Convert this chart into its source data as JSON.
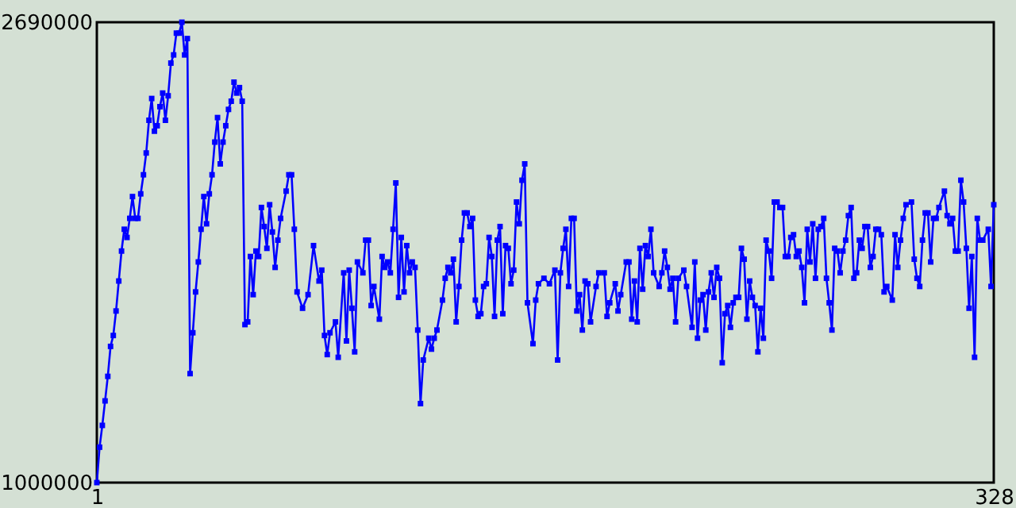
{
  "chart_data": {
    "type": "line",
    "marker": "square",
    "line_style": "solid",
    "xlim": [
      1,
      328
    ],
    "xticks": [
      1,
      328
    ],
    "ylim": [
      1000000,
      2690000
    ],
    "yticks": [
      1000000,
      2690000
    ],
    "series": [
      {
        "color": "#0000ff",
        "x": [
          1,
          2,
          3,
          4,
          5,
          6,
          7,
          8,
          9,
          10,
          11,
          12,
          13,
          14,
          15,
          16,
          17,
          18,
          19,
          20,
          21,
          22,
          23,
          24,
          25,
          26,
          27,
          28,
          29,
          30,
          31,
          32,
          33,
          34,
          35,
          36,
          37,
          38,
          39,
          40,
          41,
          42,
          43,
          44,
          45,
          46,
          47,
          48,
          49,
          50,
          51,
          52,
          53,
          54,
          55,
          56,
          57,
          58,
          59,
          60,
          61,
          62,
          63,
          64,
          65,
          66,
          67,
          68,
          70,
          71,
          72,
          73,
          74,
          76,
          78,
          80,
          82,
          83,
          84,
          85,
          86,
          88,
          89,
          91,
          92,
          93,
          94,
          95,
          96,
          98,
          99,
          100,
          101,
          102,
          104,
          105,
          106,
          107,
          108,
          109,
          110,
          111,
          112,
          113,
          114,
          115,
          116,
          117,
          118,
          119,
          120,
          122,
          123,
          124,
          125,
          127,
          128,
          129,
          130,
          131,
          132,
          133,
          134,
          135,
          136,
          137,
          138,
          139,
          140,
          141,
          142,
          143,
          144,
          145,
          146,
          147,
          148,
          149,
          150,
          151,
          152,
          153,
          154,
          155,
          156,
          157,
          158,
          160,
          161,
          162,
          164,
          166,
          168,
          169,
          170,
          171,
          172,
          173,
          174,
          175,
          176,
          177,
          178,
          179,
          180,
          181,
          183,
          184,
          186,
          187,
          188,
          190,
          191,
          192,
          194,
          195,
          196,
          197,
          198,
          199,
          200,
          201,
          202,
          203,
          204,
          206,
          207,
          208,
          209,
          210,
          211,
          212,
          213,
          215,
          216,
          218,
          219,
          220,
          221,
          222,
          223,
          224,
          225,
          226,
          227,
          228,
          229,
          230,
          231,
          232,
          233,
          234,
          235,
          236,
          237,
          238,
          239,
          240,
          241,
          242,
          243,
          244,
          245,
          246,
          247,
          248,
          249,
          250,
          251,
          252,
          253,
          254,
          255,
          256,
          257,
          258,
          259,
          260,
          261,
          262,
          263,
          264,
          265,
          266,
          267,
          268,
          269,
          270,
          271,
          272,
          273,
          274,
          275,
          276,
          277,
          278,
          279,
          280,
          281,
          282,
          283,
          284,
          285,
          286,
          287,
          288,
          289,
          291,
          292,
          293,
          294,
          295,
          296,
          298,
          299,
          300,
          301,
          302,
          303,
          304,
          305,
          306,
          307,
          308,
          310,
          311,
          312,
          313,
          314,
          315,
          316,
          317,
          318,
          319,
          320,
          321,
          322,
          323,
          324,
          326,
          327,
          328
        ],
        "values": [
          1000000,
          1130000,
          1210000,
          1300000,
          1390000,
          1500000,
          1540000,
          1630000,
          1740000,
          1850000,
          1930000,
          1900000,
          1970000,
          2050000,
          1970000,
          1970000,
          2060000,
          2130000,
          2210000,
          2330000,
          2410000,
          2290000,
          2310000,
          2380000,
          2430000,
          2330000,
          2420000,
          2540000,
          2570000,
          2650000,
          2650000,
          2690000,
          2570000,
          2630000,
          1400000,
          1550000,
          1700000,
          1810000,
          1930000,
          2050000,
          1950000,
          2060000,
          2130000,
          2250000,
          2340000,
          2170000,
          2250000,
          2310000,
          2370000,
          2400000,
          2470000,
          2430000,
          2450000,
          2400000,
          1580000,
          1590000,
          1830000,
          1690000,
          1850000,
          1830000,
          2010000,
          1940000,
          1860000,
          2020000,
          1920000,
          1790000,
          1890000,
          1970000,
          2070000,
          2130000,
          2130000,
          1930000,
          1700000,
          1640000,
          1690000,
          1870000,
          1740000,
          1780000,
          1540000,
          1470000,
          1550000,
          1590000,
          1460000,
          1770000,
          1520000,
          1780000,
          1640000,
          1480000,
          1810000,
          1770000,
          1890000,
          1890000,
          1650000,
          1720000,
          1600000,
          1830000,
          1790000,
          1810000,
          1770000,
          1930000,
          2100000,
          1680000,
          1900000,
          1700000,
          1870000,
          1770000,
          1810000,
          1790000,
          1560000,
          1290000,
          1450000,
          1530000,
          1490000,
          1530000,
          1560000,
          1670000,
          1750000,
          1790000,
          1770000,
          1820000,
          1590000,
          1720000,
          1890000,
          1990000,
          1990000,
          1940000,
          1970000,
          1670000,
          1610000,
          1620000,
          1720000,
          1730000,
          1900000,
          1830000,
          1610000,
          1890000,
          1940000,
          1620000,
          1870000,
          1860000,
          1730000,
          1780000,
          2030000,
          1950000,
          2110000,
          2170000,
          1660000,
          1510000,
          1670000,
          1730000,
          1750000,
          1730000,
          1780000,
          1450000,
          1770000,
          1860000,
          1930000,
          1720000,
          1970000,
          1970000,
          1630000,
          1690000,
          1560000,
          1740000,
          1730000,
          1590000,
          1720000,
          1770000,
          1770000,
          1610000,
          1660000,
          1730000,
          1630000,
          1690000,
          1810000,
          1810000,
          1600000,
          1740000,
          1590000,
          1860000,
          1710000,
          1870000,
          1830000,
          1930000,
          1770000,
          1720000,
          1770000,
          1850000,
          1790000,
          1710000,
          1750000,
          1590000,
          1750000,
          1780000,
          1720000,
          1570000,
          1810000,
          1530000,
          1670000,
          1690000,
          1560000,
          1700000,
          1770000,
          1680000,
          1790000,
          1750000,
          1440000,
          1620000,
          1650000,
          1570000,
          1660000,
          1680000,
          1680000,
          1860000,
          1820000,
          1600000,
          1740000,
          1680000,
          1650000,
          1480000,
          1640000,
          1530000,
          1890000,
          1850000,
          1750000,
          2030000,
          2030000,
          2010000,
          2010000,
          1830000,
          1830000,
          1900000,
          1910000,
          1830000,
          1850000,
          1790000,
          1660000,
          1930000,
          1810000,
          1950000,
          1750000,
          1930000,
          1940000,
          1970000,
          1750000,
          1660000,
          1560000,
          1860000,
          1850000,
          1770000,
          1850000,
          1890000,
          1980000,
          2010000,
          1750000,
          1770000,
          1890000,
          1860000,
          1940000,
          1940000,
          1790000,
          1830000,
          1930000,
          1930000,
          1910000,
          1700000,
          1720000,
          1670000,
          1910000,
          1790000,
          1890000,
          1970000,
          2020000,
          2030000,
          1820000,
          1750000,
          1720000,
          1890000,
          1990000,
          1990000,
          1810000,
          1970000,
          1970000,
          2010000,
          2070000,
          1980000,
          1950000,
          1970000,
          1850000,
          1850000,
          2110000,
          2030000,
          1860000,
          1640000,
          1830000,
          1460000,
          1970000,
          1890000,
          1890000,
          1930000,
          1720000,
          2020000
        ]
      }
    ]
  }
}
